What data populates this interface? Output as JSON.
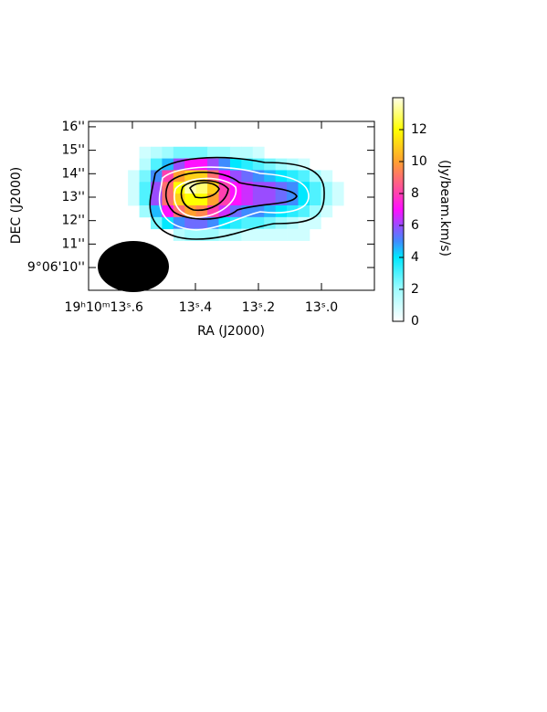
{
  "chart_data": {
    "type": "heatmap",
    "xlabel": "RA (J2000)",
    "ylabel": "DEC (J2000)",
    "colorbar_label": "(Jy/beam.km/s)",
    "xlim": [
      13.739,
      12.832
    ],
    "xticks": [
      {
        "value": 13.6,
        "label": "19ʰ10ᵐ13ˢ.6"
      },
      {
        "value": 13.4,
        "label": "13ˢ.4"
      },
      {
        "value": 13.2,
        "label": "13ˢ.2"
      },
      {
        "value": 13.0,
        "label": "13ˢ.0"
      }
    ],
    "ylim": [
      9.03,
      16.23
    ],
    "yticks": [
      {
        "value": 10,
        "label": "9°06'10''"
      },
      {
        "value": 11,
        "label": "11''"
      },
      {
        "value": 12,
        "label": "12''"
      },
      {
        "value": 13,
        "label": "13''"
      },
      {
        "value": 14,
        "label": "14''"
      },
      {
        "value": 15,
        "label": "15''"
      },
      {
        "value": 16,
        "label": "16''"
      }
    ],
    "x": [
      13.596,
      13.56,
      13.524,
      13.488,
      13.452,
      13.416,
      13.38,
      13.344,
      13.308,
      13.272,
      13.236,
      13.2,
      13.164,
      13.128,
      13.092,
      13.056,
      13.02,
      12.984,
      12.948
    ],
    "y": [
      14.9,
      14.4,
      13.9,
      13.4,
      12.9,
      12.4,
      11.9,
      11.4
    ],
    "z": [
      [
        null,
        1,
        1.5,
        2,
        2.5,
        2.5,
        2.5,
        2,
        2,
        1.5,
        1.5,
        1,
        null,
        null,
        null,
        null,
        null,
        null,
        null
      ],
      [
        null,
        1.5,
        3,
        4.5,
        6,
        7,
        7,
        6,
        5,
        4,
        3.5,
        3,
        2.5,
        2,
        1.5,
        1,
        null,
        null,
        null
      ],
      [
        1,
        2.5,
        5,
        8,
        10,
        11,
        11,
        9,
        7,
        6,
        5.5,
        5,
        4.5,
        4,
        3.5,
        3,
        2,
        1,
        null
      ],
      [
        1,
        3,
        6,
        9,
        12,
        13.5,
        13,
        11,
        8,
        7,
        6.5,
        6,
        6,
        5.5,
        5,
        4,
        3,
        2,
        1
      ],
      [
        1,
        3,
        6,
        9,
        11,
        12,
        12,
        10,
        8,
        7,
        6.5,
        6,
        6,
        5.5,
        5,
        4,
        3,
        2,
        1
      ],
      [
        null,
        2,
        4.5,
        7,
        9,
        10,
        9.5,
        8,
        6.5,
        5.5,
        5,
        5,
        4.5,
        4,
        3.5,
        3,
        2,
        1,
        null
      ],
      [
        null,
        null,
        2.5,
        4,
        5,
        5.5,
        5.5,
        5,
        4,
        3.5,
        3,
        3,
        2.5,
        2,
        1.5,
        1,
        1,
        null,
        null
      ],
      [
        null,
        null,
        null,
        null,
        1.5,
        2,
        2,
        2,
        1.5,
        1.5,
        1,
        1,
        1,
        1,
        1,
        1,
        null,
        null,
        null
      ]
    ],
    "zlim": [
      0,
      14
    ],
    "zticks": [
      0,
      2,
      4,
      6,
      8,
      10,
      12
    ],
    "colorscale": [
      [
        0,
        "#ffffff"
      ],
      [
        2,
        "#9ffcff"
      ],
      [
        4,
        "#00e8ff"
      ],
      [
        5,
        "#3f8cff"
      ],
      [
        6,
        "#9a4cff"
      ],
      [
        7,
        "#ff10ff"
      ],
      [
        8,
        "#ff40b0"
      ],
      [
        10,
        "#ffa030"
      ],
      [
        12,
        "#ffff00"
      ],
      [
        14,
        "#ffffe8"
      ]
    ]
  }
}
